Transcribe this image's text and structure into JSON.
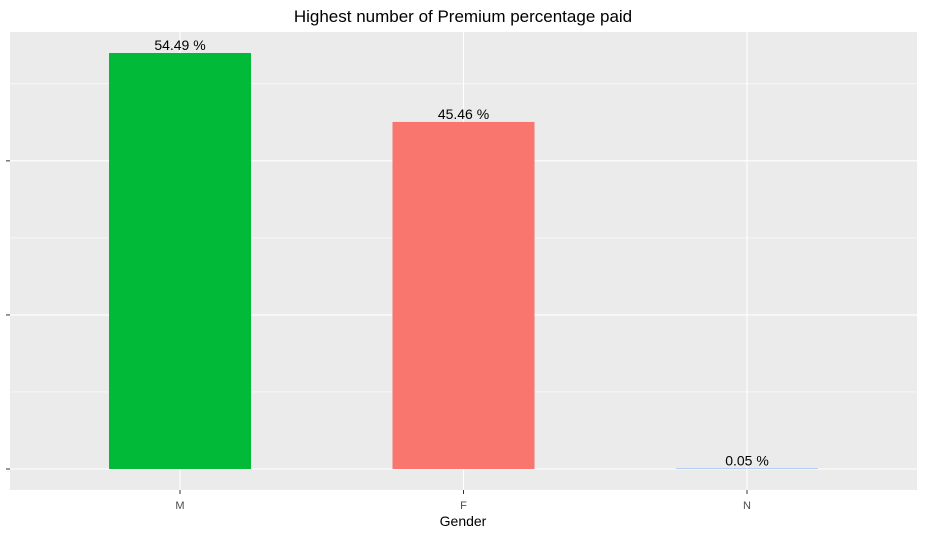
{
  "chart_data": {
    "type": "bar",
    "title": "Highest number of Premium percentage paid",
    "xlabel": "Gender",
    "ylabel": "",
    "categories": [
      "M",
      "F",
      "N"
    ],
    "values": [
      54.49,
      45.46,
      0.05
    ],
    "data_labels": [
      "54.49 %",
      "45.46 %",
      "0.05 %"
    ],
    "ylim": [
      0,
      54.49
    ],
    "grid": true,
    "legend": "none",
    "colors": {
      "panel_background": "#EBEBEB",
      "grid": "#FFFFFF",
      "bars": [
        "#00BA38",
        "#F8766D",
        "#619CFF"
      ],
      "text": "#000000",
      "tick_text": "#4D4D4D"
    }
  }
}
